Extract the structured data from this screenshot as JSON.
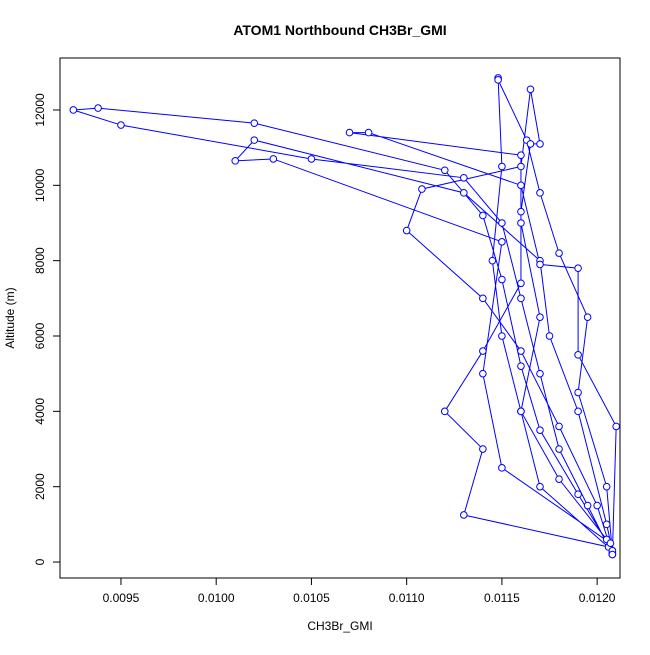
{
  "chart_data": {
    "type": "line",
    "title": "ATOM1 Northbound CH3Br_GMI",
    "x_label": "CH3Br_GMI",
    "y_label": "Altitude (m)",
    "color": "#0000ff",
    "markers": true,
    "xlim": [
      0.00918,
      0.01212
    ],
    "ylim": [
      -424,
      13380
    ],
    "xticks": [
      0.0095,
      {
        "value": 0.01,
        "label": "0.0100"
      },
      0.0105,
      {
        "value": 0.011,
        "label": "0.0110"
      },
      0.0115,
      {
        "value": 0.012,
        "label": "0.0120"
      }
    ],
    "yticks": [
      0,
      2000,
      4000,
      6000,
      8000,
      10000,
      12000
    ],
    "x": [
      0.01208,
      0.01195,
      0.0118,
      0.0117,
      0.0116,
      0.0115,
      0.0113,
      0.0105,
      0.0095,
      0.00925,
      0.00938,
      0.0102,
      0.0112,
      0.0114,
      0.0115,
      0.0116,
      0.0117,
      0.0119,
      0.01208,
      0.01205,
      0.0118,
      0.0116,
      0.0115,
      0.01145,
      0.0115,
      0.01148,
      0.01148,
      0.01163,
      0.0117,
      0.0118,
      0.01195,
      0.0119,
      0.01205,
      0.01208,
      0.01206,
      0.0113,
      0.0114,
      0.0112,
      0.0114,
      0.0116,
      0.0116,
      0.01165,
      0.0117,
      0.01165,
      0.0116,
      0.01108,
      0.011,
      0.0114,
      0.0116,
      0.0118,
      0.012,
      0.01208,
      0.01207,
      0.0115,
      0.0114,
      0.0115,
      0.0103,
      0.0101,
      0.0102,
      0.0113,
      0.0117,
      0.01175,
      0.0119,
      0.01205,
      0.01208,
      0.0117,
      0.0116,
      0.0117,
      0.0116,
      0.0116,
      0.0107,
      0.0108,
      0.0116,
      0.0117,
      0.0119,
      0.0119,
      0.0121,
      0.01208
    ],
    "y": [
      200,
      1500,
      3000,
      5000,
      7000,
      9000,
      10200,
      10700,
      11600,
      12000,
      12050,
      11650,
      10400,
      9200,
      7500,
      5200,
      3500,
      1800,
      300,
      600,
      2200,
      4000,
      6000,
      8000,
      10500,
      12850,
      12800,
      11200,
      9800,
      8200,
      6500,
      4500,
      2000,
      250,
      400,
      1250,
      3000,
      4000,
      5600,
      7400,
      9300,
      11100,
      11100,
      12550,
      10500,
      9900,
      8800,
      7000,
      5600,
      3600,
      1500,
      200,
      500,
      2500,
      5000,
      8500,
      10700,
      10650,
      11200,
      9800,
      8000,
      6000,
      4000,
      1000,
      300,
      2000,
      4000,
      6500,
      9000,
      10800,
      11400,
      11400,
      10000,
      7900,
      7800,
      5500,
      3600,
      200
    ]
  }
}
